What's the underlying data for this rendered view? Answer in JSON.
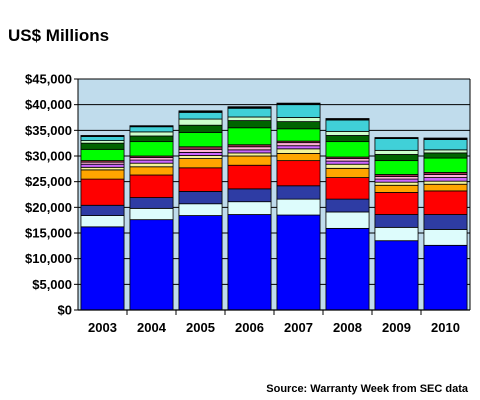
{
  "chart_data": {
    "type": "bar",
    "stacked": true,
    "title": "US$ Millions",
    "source": "Source: Warranty Week from SEC data",
    "categories": [
      "2003",
      "2004",
      "2005",
      "2006",
      "2007",
      "2008",
      "2009",
      "2010"
    ],
    "ylim": [
      0,
      45000
    ],
    "yticks": [
      0,
      5000,
      10000,
      15000,
      20000,
      25000,
      30000,
      35000,
      40000,
      45000
    ],
    "ytick_labels": [
      "$0",
      "$5,000",
      "$10,000",
      "$15,000",
      "$20,000",
      "$25,000",
      "$30,000",
      "$35,000",
      "$40,000",
      "$45,000"
    ],
    "grid": "horizontal",
    "plot_background": "#c0dcec",
    "legend": "none",
    "series": [
      {
        "color": "#0000ff",
        "values": [
          16200,
          17600,
          18400,
          18600,
          18500,
          15900,
          13500,
          12600
        ]
      },
      {
        "color": "#ddfcfc",
        "values": [
          2200,
          2200,
          2300,
          2500,
          3100,
          3200,
          2600,
          3100
        ]
      },
      {
        "color": "#2e3ca4",
        "values": [
          2000,
          2100,
          2400,
          2500,
          2600,
          2500,
          2500,
          2900
        ]
      },
      {
        "color": "#ff0000",
        "values": [
          5100,
          4400,
          4600,
          4600,
          4900,
          4200,
          4300,
          4600
        ]
      },
      {
        "color": "#ffa500",
        "values": [
          1800,
          1600,
          1800,
          1800,
          1400,
          1800,
          1400,
          1300
        ]
      },
      {
        "color": "#f4f498",
        "values": [
          500,
          700,
          600,
          600,
          900,
          800,
          600,
          600
        ]
      },
      {
        "color": "#cc66ff",
        "values": [
          600,
          600,
          600,
          600,
          600,
          600,
          600,
          700
        ]
      },
      {
        "color": "#ffb0d8",
        "values": [
          400,
          500,
          600,
          600,
          600,
          500,
          500,
          600
        ]
      },
      {
        "color": "#a03050",
        "values": [
          300,
          300,
          500,
          400,
          300,
          300,
          400,
          400
        ]
      },
      {
        "color": "#00ff00",
        "values": [
          2200,
          2800,
          2800,
          3300,
          2400,
          3000,
          2700,
          2800
        ]
      },
      {
        "color": "#006400",
        "values": [
          1200,
          1100,
          1400,
          1400,
          1400,
          1200,
          1200,
          1000
        ]
      },
      {
        "color": "#ccffcc",
        "values": [
          500,
          800,
          1200,
          700,
          800,
          800,
          800,
          600
        ]
      },
      {
        "color": "#40d0d8",
        "values": [
          800,
          1000,
          1300,
          1700,
          2500,
          2200,
          2300,
          2000
        ]
      },
      {
        "color": "#000000",
        "values": [
          200,
          200,
          300,
          300,
          300,
          300,
          200,
          300
        ]
      }
    ]
  }
}
